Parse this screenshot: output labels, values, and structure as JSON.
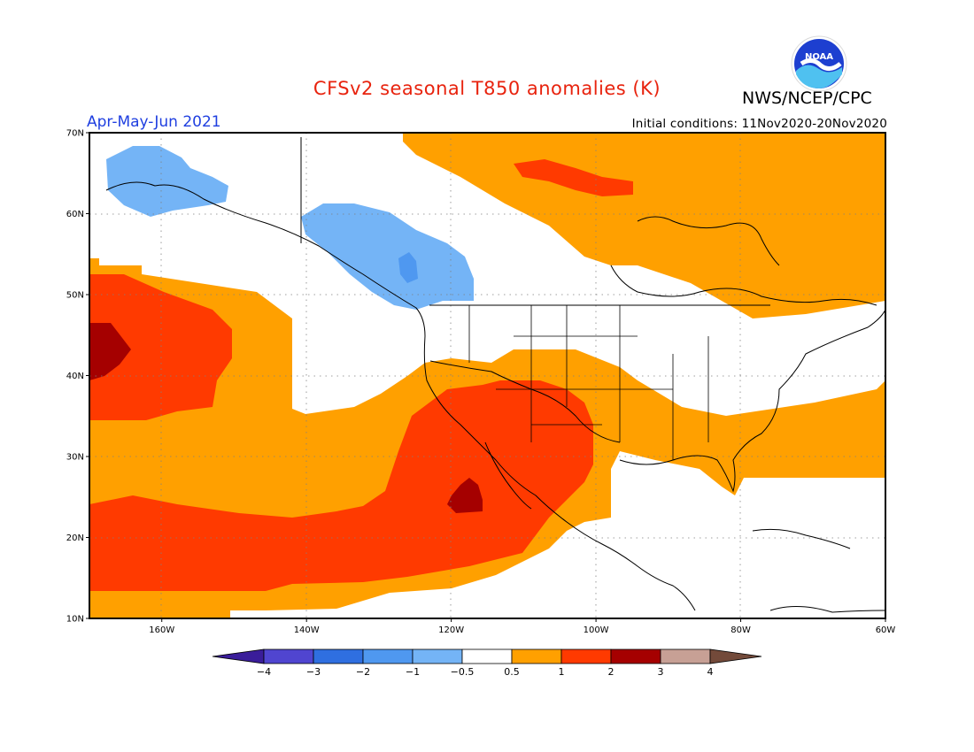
{
  "header": {
    "title": "CFSv2 seasonal T850 anomalies (K)",
    "agency": "NWS/NCEP/CPC",
    "period": "Apr-May-Jun 2021",
    "initial_conditions": "Initial conditions: 11Nov2020-20Nov2020",
    "logo_text": "NOAA"
  },
  "map": {
    "projection": "lat-lon",
    "lon_range": [
      -170,
      -60
    ],
    "lat_range": [
      10,
      70
    ],
    "lat_ticks": [
      {
        "value": 70,
        "label": "70N"
      },
      {
        "value": 60,
        "label": "60N"
      },
      {
        "value": 50,
        "label": "50N"
      },
      {
        "value": 40,
        "label": "40N"
      },
      {
        "value": 30,
        "label": "30N"
      },
      {
        "value": 20,
        "label": "20N"
      },
      {
        "value": 10,
        "label": "10N"
      }
    ],
    "lon_ticks": [
      {
        "value": -160,
        "label": "160W"
      },
      {
        "value": -140,
        "label": "140W"
      },
      {
        "value": -120,
        "label": "120W"
      },
      {
        "value": -100,
        "label": "100W"
      },
      {
        "value": -80,
        "label": "80W"
      },
      {
        "value": -60,
        "label": "60W"
      }
    ],
    "grid": "dotted",
    "colors": {
      "neg_4": "#3a1d9a",
      "neg_3": "#5045d0",
      "neg_2": "#2f6fe0",
      "neg_1": "#4f98f0",
      "neg_05": "#74b4f6",
      "neutral": "#ffffff",
      "pos_05": "#ffa000",
      "pos_1": "#ff3a00",
      "pos_2": "#a50000",
      "pos_3": "#c7a095",
      "pos_4": "#734a3a"
    }
  },
  "colorbar": {
    "labels": [
      "-4",
      "-3",
      "-2",
      "-1",
      "-0.5",
      "0.5",
      "1",
      "2",
      "3",
      "4"
    ],
    "bins": [
      {
        "color": "#3a1d9a"
      },
      {
        "color": "#5045d0"
      },
      {
        "color": "#2f6fe0"
      },
      {
        "color": "#4f98f0"
      },
      {
        "color": "#74b4f6"
      },
      {
        "color": "#ffffff"
      },
      {
        "color": "#ffa000"
      },
      {
        "color": "#ff3a00"
      },
      {
        "color": "#a50000"
      },
      {
        "color": "#c7a095"
      },
      {
        "color": "#734a3a"
      }
    ]
  }
}
